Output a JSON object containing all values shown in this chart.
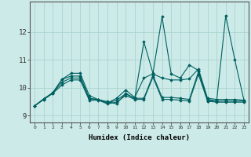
{
  "xlabel": "Humidex (Indice chaleur)",
  "xlim": [
    -0.5,
    23.5
  ],
  "ylim": [
    8.75,
    13.1
  ],
  "yticks": [
    9,
    10,
    11,
    12
  ],
  "xticks": [
    0,
    1,
    2,
    3,
    4,
    5,
    6,
    7,
    8,
    9,
    10,
    11,
    12,
    13,
    14,
    15,
    16,
    17,
    18,
    19,
    20,
    21,
    22,
    23
  ],
  "background_color": "#cceae8",
  "grid_color": "#aad4d0",
  "line_color": "#006060",
  "lines": [
    [
      9.35,
      9.6,
      9.82,
      10.3,
      10.52,
      10.52,
      9.72,
      9.57,
      9.5,
      9.42,
      9.8,
      9.62,
      11.65,
      10.52,
      12.55,
      10.5,
      10.35,
      10.82,
      10.62,
      9.52,
      9.52,
      12.6,
      11.0,
      9.55
    ],
    [
      9.35,
      9.6,
      9.82,
      10.3,
      10.42,
      10.42,
      9.62,
      9.57,
      9.45,
      9.62,
      9.92,
      9.65,
      10.35,
      10.5,
      10.35,
      10.28,
      10.28,
      10.32,
      10.68,
      9.62,
      9.58,
      9.58,
      9.58,
      9.55
    ],
    [
      9.35,
      9.58,
      9.8,
      10.2,
      10.35,
      10.35,
      9.6,
      9.58,
      9.45,
      9.55,
      9.78,
      9.62,
      9.62,
      10.45,
      9.65,
      9.65,
      9.62,
      9.58,
      10.58,
      9.58,
      9.52,
      9.52,
      9.52,
      9.52
    ],
    [
      9.35,
      9.58,
      9.8,
      10.1,
      10.28,
      10.28,
      9.55,
      9.55,
      9.42,
      9.48,
      9.72,
      9.58,
      9.58,
      10.38,
      9.58,
      9.58,
      9.55,
      9.52,
      10.48,
      9.52,
      9.48,
      9.48,
      9.48,
      9.48
    ]
  ]
}
